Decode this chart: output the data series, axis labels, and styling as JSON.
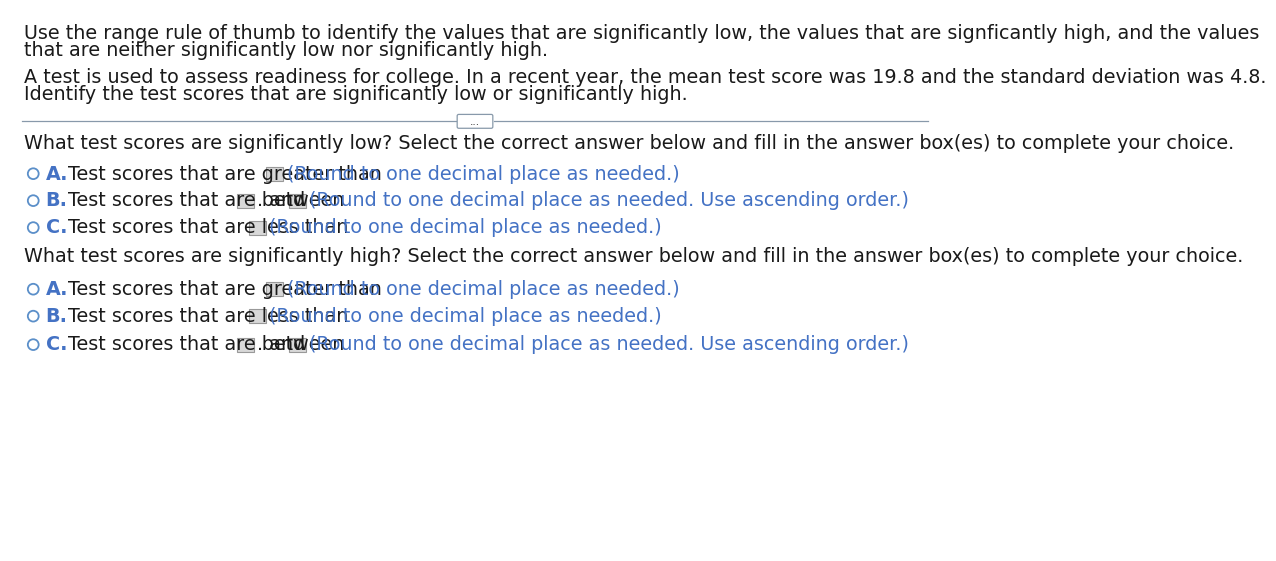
{
  "background_color": "#ffffff",
  "title_text_1": "Use the range rule of thumb to identify the values that are significantly low, the values that are signficantly high, and the values",
  "title_text_2": "that are neither significantly low nor significantly high.",
  "body_text_1": "A test is used to assess readiness for college. In a recent year, the mean test score was 19.8 and the standard deviation was 4.8.",
  "body_text_2": "Identify the test scores that are significantly low or significantly high.",
  "divider_label": "...",
  "section1_header": "What test scores are significantly low? Select the correct answer below and fill in the answer box(es) to complete your choice.",
  "section1_options": [
    {
      "letter": "A.",
      "black_text": "Test scores that are greater than",
      "blue_text": "(Round to one decimal place as needed.)",
      "has_and": false
    },
    {
      "letter": "B.",
      "black_text": "Test scores that are between",
      "blue_text": "(Round to one decimal place as needed. Use ascending order.)",
      "has_and": true
    },
    {
      "letter": "C.",
      "black_text": "Test scores that are less than",
      "blue_text": "(Round to one decimal place as needed.)",
      "has_and": false
    }
  ],
  "section2_header": "What test scores are significantly high? Select the correct answer below and fill in the answer box(es) to complete your choice.",
  "section2_options": [
    {
      "letter": "A.",
      "black_text": "Test scores that are greater than",
      "blue_text": "(Round to one decimal place as needed.)",
      "has_and": false
    },
    {
      "letter": "B.",
      "black_text": "Test scores that are less than",
      "blue_text": "(Round to one decimal place as needed.)",
      "has_and": false
    },
    {
      "letter": "C.",
      "black_text": "Test scores that are between",
      "blue_text": "(Round to one decimal place as needed. Use ascending order.)",
      "has_and": true
    }
  ],
  "text_color_black": "#1a1a1a",
  "text_color_blue": "#4472C4",
  "circle_color": "#5b8fc9",
  "box_fill": "#d8d8d8",
  "box_edge": "#999999",
  "letter_color": "#4472C4",
  "divider_color": "#8899aa",
  "font_size": 13.8,
  "font_size_small": 13.8
}
